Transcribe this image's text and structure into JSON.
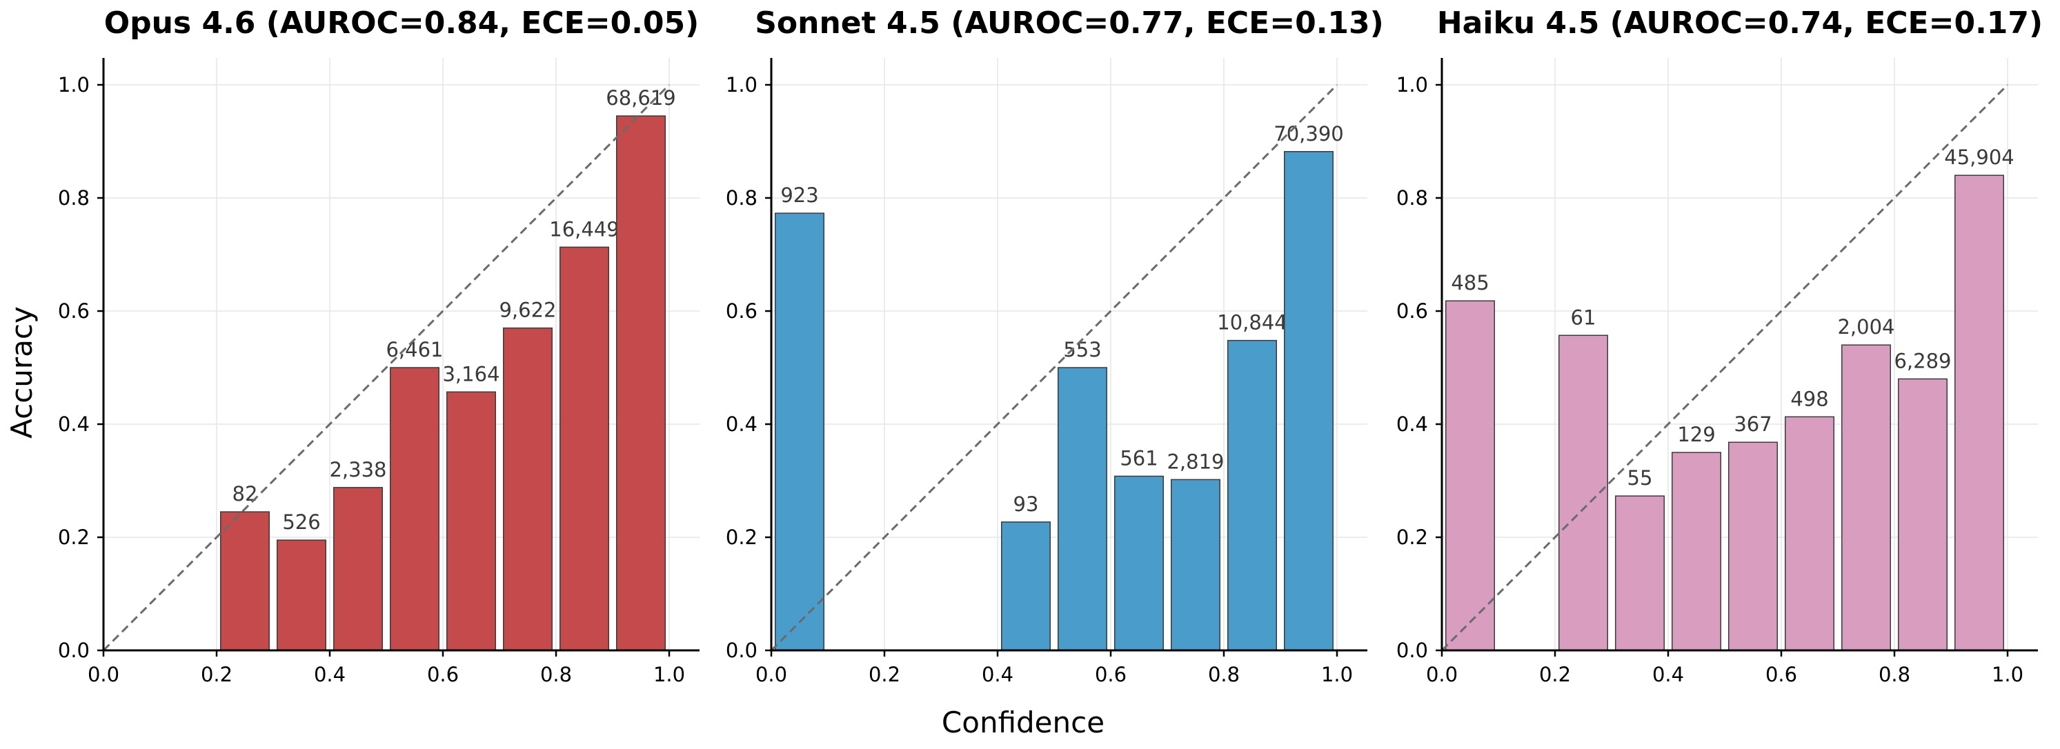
{
  "chart_data": {
    "type": "bar",
    "xlabel": "Confidence",
    "ylabel": "Accuracy",
    "xlim": [
      0.0,
      1.0
    ],
    "ylim": [
      0.0,
      1.0
    ],
    "xticks": [
      "0.0",
      "0.2",
      "0.4",
      "0.6",
      "0.8",
      "1.0"
    ],
    "yticks": [
      "0.0",
      "0.2",
      "0.4",
      "0.6",
      "0.8",
      "1.0"
    ],
    "grid": true,
    "bin_edges": [
      0.0,
      0.1,
      0.2,
      0.3,
      0.4,
      0.5,
      0.6,
      0.7,
      0.8,
      0.9,
      1.0
    ],
    "panels": [
      {
        "title": "Opus 4.6 (AUROC=0.84, ECE=0.05)",
        "color": "#c44a4c",
        "bars": [
          {
            "bin": 2,
            "accuracy": 0.245,
            "count": "82"
          },
          {
            "bin": 3,
            "accuracy": 0.195,
            "count": "526"
          },
          {
            "bin": 4,
            "accuracy": 0.288,
            "count": "2,338"
          },
          {
            "bin": 5,
            "accuracy": 0.5,
            "count": "6,461"
          },
          {
            "bin": 6,
            "accuracy": 0.457,
            "count": "3,164"
          },
          {
            "bin": 7,
            "accuracy": 0.57,
            "count": "9,622"
          },
          {
            "bin": 8,
            "accuracy": 0.713,
            "count": "16,449"
          },
          {
            "bin": 9,
            "accuracy": 0.945,
            "count": "68,619"
          }
        ]
      },
      {
        "title": "Sonnet 4.5 (AUROC=0.77, ECE=0.13)",
        "color": "#4a9ccb",
        "bars": [
          {
            "bin": 0,
            "accuracy": 0.773,
            "count": "923"
          },
          {
            "bin": 4,
            "accuracy": 0.227,
            "count": "93"
          },
          {
            "bin": 5,
            "accuracy": 0.5,
            "count": "553"
          },
          {
            "bin": 6,
            "accuracy": 0.308,
            "count": "561"
          },
          {
            "bin": 7,
            "accuracy": 0.302,
            "count": "2,819"
          },
          {
            "bin": 8,
            "accuracy": 0.548,
            "count": "10,844"
          },
          {
            "bin": 9,
            "accuracy": 0.882,
            "count": "70,390"
          }
        ]
      },
      {
        "title": "Haiku 4.5 (AUROC=0.74, ECE=0.17)",
        "color": "#d99dbf",
        "bars": [
          {
            "bin": 0,
            "accuracy": 0.618,
            "count": "485"
          },
          {
            "bin": 2,
            "accuracy": 0.557,
            "count": "61"
          },
          {
            "bin": 3,
            "accuracy": 0.273,
            "count": "55"
          },
          {
            "bin": 4,
            "accuracy": 0.35,
            "count": "129"
          },
          {
            "bin": 5,
            "accuracy": 0.368,
            "count": "367"
          },
          {
            "bin": 6,
            "accuracy": 0.413,
            "count": "498"
          },
          {
            "bin": 7,
            "accuracy": 0.54,
            "count": "2,004"
          },
          {
            "bin": 8,
            "accuracy": 0.48,
            "count": "6,289"
          },
          {
            "bin": 9,
            "accuracy": 0.84,
            "count": "45,904"
          }
        ]
      }
    ]
  }
}
